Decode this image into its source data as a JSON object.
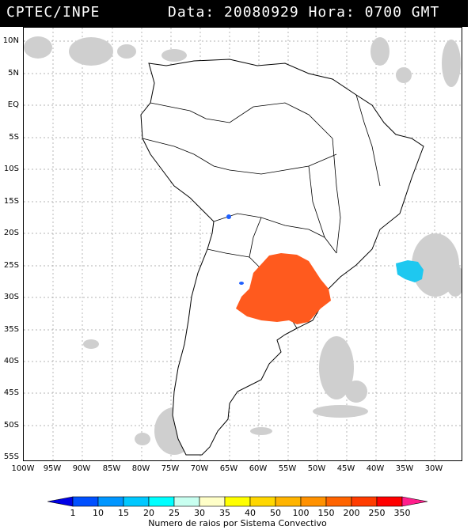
{
  "header": {
    "source": "CPTEC/INPE",
    "date_label": "Data:",
    "date_value": "20080929",
    "hour_label": "Hora:",
    "hour_value": "0700 GMT"
  },
  "map": {
    "lat_labels": [
      "10N",
      "5N",
      "EQ",
      "5S",
      "10S",
      "15S",
      "20S",
      "25S",
      "30S",
      "35S",
      "40S",
      "45S",
      "50S",
      "55S"
    ],
    "lon_labels": [
      "100W",
      "95W",
      "90W",
      "85W",
      "80W",
      "75W",
      "70W",
      "65W",
      "60W",
      "55W",
      "50W",
      "45W",
      "40W",
      "35W",
      "30W"
    ],
    "colors": {
      "cloud": "#cfcfcf",
      "cloud_dark": "#a8a8a8",
      "lightning_main": "#ff5a1e",
      "lightning_ocean": "#1ec8f0",
      "lightning_small": "#1f60ff",
      "border": "#000000",
      "grid": "#9a9a9a"
    }
  },
  "legend": {
    "title": "Numero de raios por Sistema Convectivo",
    "ticks": [
      "1",
      "10",
      "15",
      "20",
      "25",
      "30",
      "35",
      "40",
      "50",
      "100",
      "150",
      "200",
      "250",
      "350"
    ],
    "colors": [
      "#0000e6",
      "#0050ff",
      "#0096ff",
      "#00c8ff",
      "#00ffff",
      "#c8fff0",
      "#ffffc8",
      "#ffff00",
      "#ffd700",
      "#ffb400",
      "#ff9100",
      "#ff6400",
      "#ff3c00",
      "#ff0000",
      "#ff1e8c"
    ]
  }
}
